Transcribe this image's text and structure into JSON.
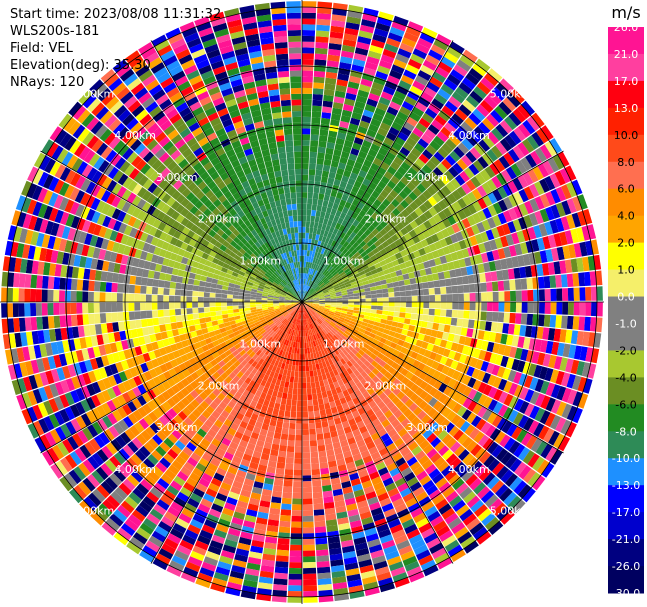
{
  "header": {
    "start_time": "Start time: 2023/08/08 11:31:32",
    "instrument": "WLS200s-181",
    "field": "Field: VEL",
    "elevation": "Elevation(deg): 35.30",
    "nrays": "NRays: 120"
  },
  "colorbar": {
    "unit": "m/s",
    "ticks": [
      "26.0",
      "21.0",
      "17.0",
      "13.0",
      "10.0",
      "8.0",
      "6.0",
      "4.0",
      "2.0",
      "1.0",
      "0.0",
      "-1.0",
      "-2.0",
      "-4.0",
      "-6.0",
      "-8.0",
      "-10.0",
      "-13.0",
      "-17.0",
      "-21.0",
      "-26.0",
      "-30.0"
    ],
    "colors": [
      "#ff1493",
      "#ff3f9f",
      "#ff0010",
      "#ff2000",
      "#ff4a1a",
      "#ff6f50",
      "#ff8c00",
      "#ffa500",
      "#ffff00",
      "#f5ef6a",
      "#808080",
      "#808080",
      "#a8c830",
      "#6b8e23",
      "#228b22",
      "#2e8b57",
      "#1e90ff",
      "#0000ff",
      "#0000cd",
      "#000080",
      "#000060"
    ]
  },
  "chart_data": {
    "type": "ppi",
    "title": "",
    "field": "VEL",
    "unit": "m/s",
    "nrays": 120,
    "elevation_deg": 35.3,
    "range_rings_km": [
      1.0,
      2.0,
      3.0,
      4.0,
      5.0
    ],
    "ring_labels": [
      "1.00km",
      "2.00km",
      "3.00km",
      "4.00km",
      "5.00km"
    ],
    "max_range_km": 5.1,
    "color_levels": [
      -30,
      -26,
      -21,
      -17,
      -13,
      -10,
      -8,
      -6,
      -4,
      -2,
      -1,
      0,
      1,
      2,
      4,
      6,
      8,
      10,
      13,
      17,
      21,
      26
    ],
    "velocity_pattern": {
      "north_sector": "negative (-4 to -10, blue near center)",
      "south_sector": "positive (+4 to +13, red near center)",
      "west_band": "near zero (grey)",
      "east_band": "near zero (yellow/grey)",
      "outer_ranges": "noisy, all colors"
    }
  }
}
